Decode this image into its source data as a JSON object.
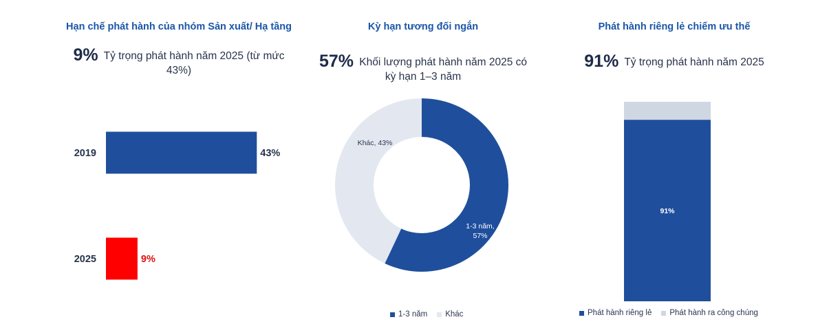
{
  "panels": {
    "p1": {
      "title": "Hạn chế phát hành của nhóm Sản xuất/ Hạ tầng",
      "highlight_value": "9%",
      "highlight_text": "Tỷ trọng phát hành năm 2025 (từ mức 43%)"
    },
    "p2": {
      "title": "Kỳ hạn tương đối ngắn",
      "highlight_value": "57%",
      "highlight_text": "Khối lượng phát hành năm 2025 có kỳ hạn 1–3 năm"
    },
    "p3": {
      "title": "Phát hành riêng lẻ chiếm ưu thế",
      "highlight_value": "91%",
      "highlight_text": "Tỷ trọng phát hành năm 2025"
    }
  },
  "chart_data": [
    {
      "type": "bar",
      "orientation": "horizontal",
      "categories": [
        "2019",
        "2025"
      ],
      "values": [
        43,
        9
      ],
      "data_labels": [
        "43%",
        "9%"
      ],
      "colors": [
        "#1f4f9c",
        "#ff0000"
      ],
      "label_colors": [
        "#27324a",
        "#e01010"
      ],
      "xlim": [
        0,
        100
      ]
    },
    {
      "type": "pie",
      "donut": true,
      "slices": [
        {
          "label": "1-3 năm",
          "value": 57,
          "data_label": "1-3 năm, 57%",
          "color": "#1f4f9c"
        },
        {
          "label": "Khác",
          "value": 43,
          "data_label": "Khác, 43%",
          "color": "#e3e8f0"
        }
      ],
      "legend": [
        "1-3 năm",
        "Khác"
      ],
      "legend_position": "bottom"
    },
    {
      "type": "bar",
      "stacked": true,
      "orientation": "vertical",
      "series": [
        {
          "name": "Phát hành riêng lẻ",
          "values": [
            91
          ],
          "data_label": "91%",
          "color": "#1f4f9c"
        },
        {
          "name": "Phát hành ra công chúng",
          "values": [
            9
          ],
          "color": "#cfd7e3"
        }
      ],
      "ylim": [
        0,
        100
      ],
      "legend_position": "bottom"
    }
  ]
}
